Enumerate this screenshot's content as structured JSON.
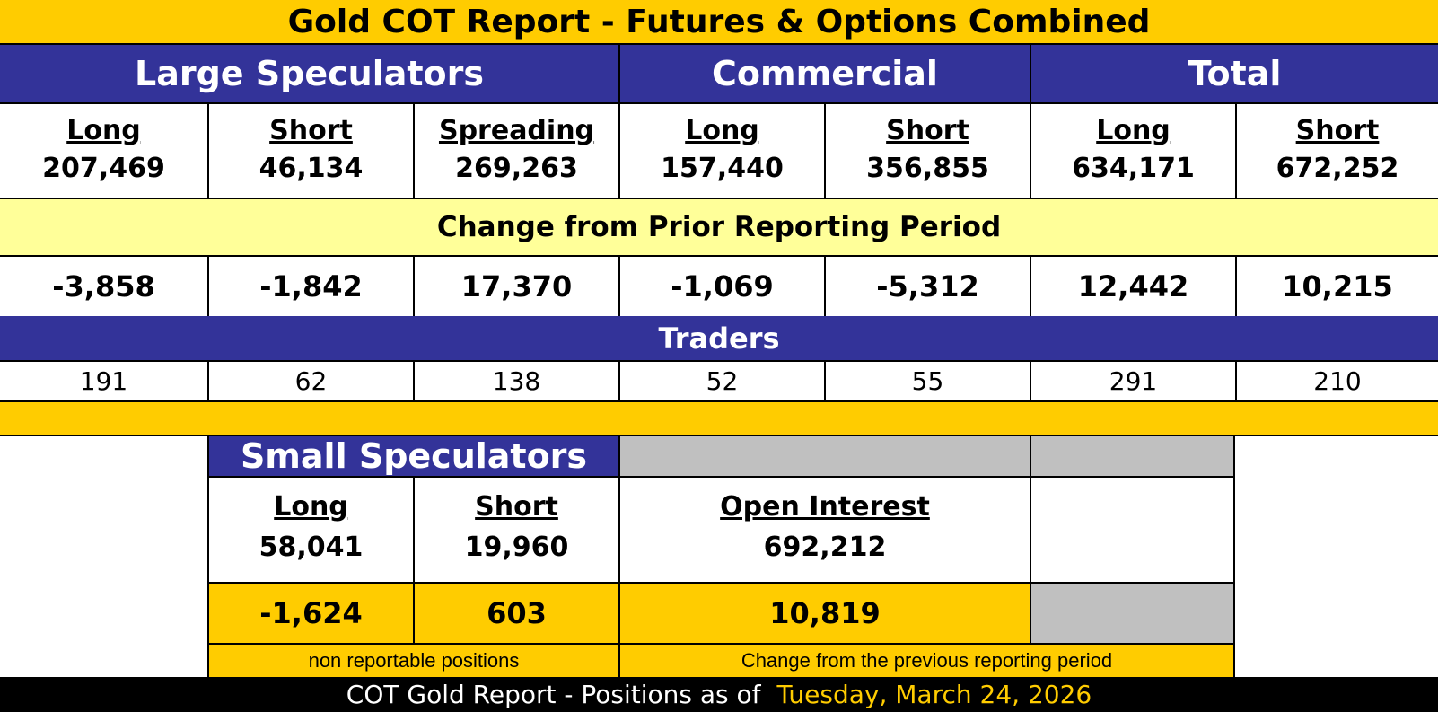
{
  "title": "Gold COT Report - Futures & Options Combined",
  "groups": {
    "large_speculators": "Large Speculators",
    "commercial": "Commercial",
    "total": "Total"
  },
  "columns": [
    {
      "label": "Long",
      "value": "207,469",
      "change": "-3,858",
      "traders": "191"
    },
    {
      "label": "Short",
      "value": "46,134",
      "change": "-1,842",
      "traders": "62"
    },
    {
      "label": "Spreading",
      "value": "269,263",
      "change": "17,370",
      "traders": "138"
    },
    {
      "label": "Long",
      "value": "157,440",
      "change": "-1,069",
      "traders": "52"
    },
    {
      "label": "Short",
      "value": "356,855",
      "change": "-5,312",
      "traders": "55"
    },
    {
      "label": "Long",
      "value": "634,171",
      "change": "12,442",
      "traders": "291"
    },
    {
      "label": "Short",
      "value": "672,252",
      "change": "10,215",
      "traders": "210"
    }
  ],
  "change_heading": "Change from Prior Reporting Period",
  "traders_heading": "Traders",
  "small_speculators": {
    "title": "Small Speculators",
    "long_label": "Long",
    "long_value": "58,041",
    "long_change": "-1,624",
    "short_label": "Short",
    "short_value": "19,960",
    "short_change": "603",
    "note": "non reportable positions"
  },
  "open_interest": {
    "label": "Open Interest",
    "value": "692,212",
    "change": "10,819",
    "note": "Change from the previous reporting period"
  },
  "footer": {
    "prefix": "COT Gold Report - Positions as of",
    "date": "Tuesday, March 24, 2026",
    "date_color": "#FFCC00"
  },
  "colors": {
    "gold": "#FFCC00",
    "navy": "#333399",
    "pale_yellow": "#FFFF99",
    "gray": "#C0C0C0"
  }
}
